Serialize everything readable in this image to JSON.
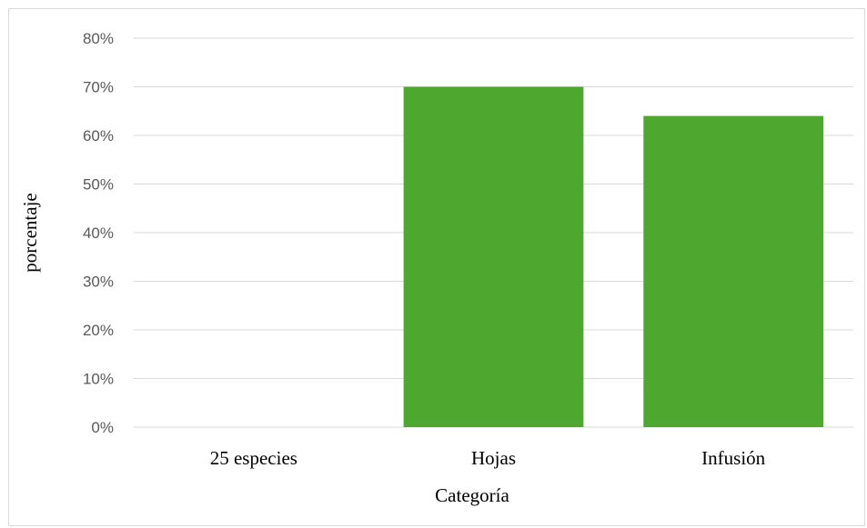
{
  "chart_data": {
    "type": "bar",
    "categories": [
      "25 especies",
      "Hojas",
      "Infusión"
    ],
    "values": [
      0,
      70,
      64
    ],
    "value_unit": "%",
    "xlabel": "Categoría",
    "ylabel": "porcentaje",
    "ylim": [
      0,
      80
    ],
    "yticks": [
      "0%",
      "10%",
      "20%",
      "30%",
      "40%",
      "50%",
      "60%",
      "70%",
      "80%"
    ],
    "grid": true,
    "legend": "none",
    "colors": {
      "bar": "#4ea72e",
      "grid": "#d9d9d9",
      "tick_text": "#595959"
    }
  }
}
